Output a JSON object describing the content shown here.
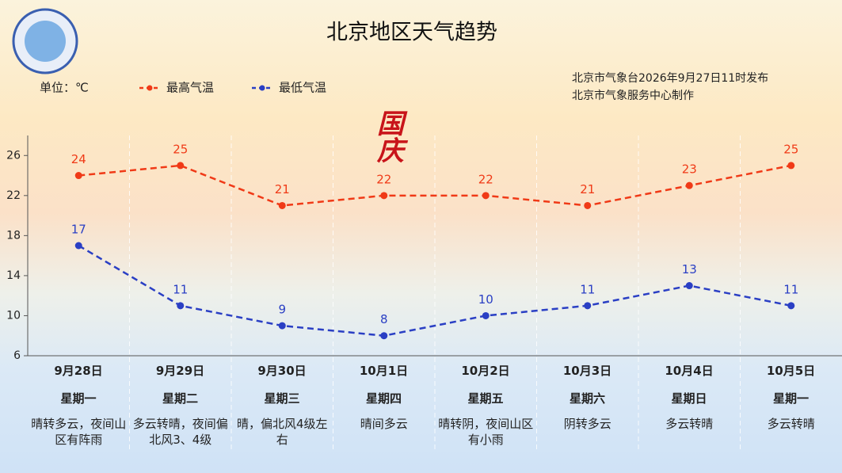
{
  "chart_data": {
    "type": "line",
    "title": "北京地区天气趋势",
    "unit_label": "单位：℃",
    "notes": [
      "北京市气象台2026年9月27日11时发布",
      "北京市气象服务中心制作"
    ],
    "decoration": "国庆",
    "categories": [
      "9月28日",
      "9月29日",
      "9月30日",
      "10月1日",
      "10月2日",
      "10月3日",
      "10月4日",
      "10月5日"
    ],
    "weekdays": [
      "星期一",
      "星期二",
      "星期三",
      "星期四",
      "星期五",
      "星期六",
      "星期日",
      "星期一"
    ],
    "descriptions": [
      "晴转多云，夜间山区有阵雨",
      "多云转晴，夜间偏北风3、4级",
      "晴，偏北风4级左右",
      "晴间多云",
      "晴转阴，夜间山区有小雨",
      "阴转多云",
      "多云转晴",
      "多云转晴"
    ],
    "series": [
      {
        "name": "最高气温",
        "color": "#f03a17",
        "values": [
          24,
          25,
          21,
          22,
          22,
          21,
          23,
          25
        ]
      },
      {
        "name": "最低气温",
        "color": "#2a3fc4",
        "values": [
          17,
          11,
          9,
          8,
          10,
          11,
          13,
          11
        ]
      }
    ],
    "ylim": [
      6,
      28
    ],
    "yticks": [
      6,
      10,
      14,
      18,
      22,
      26
    ]
  }
}
